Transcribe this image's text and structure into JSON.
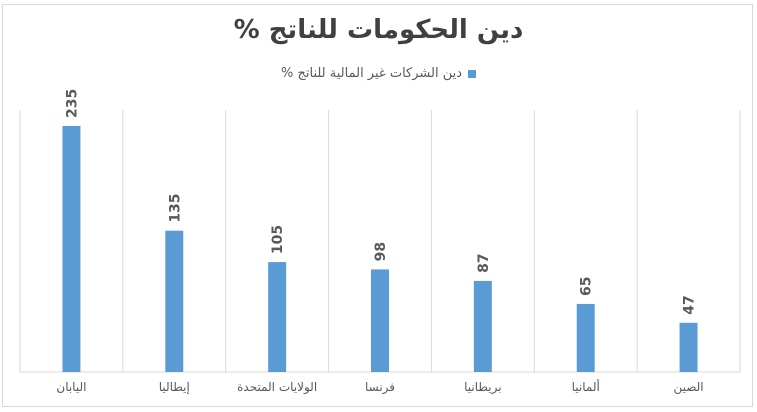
{
  "chart_data": {
    "type": "bar",
    "title": "دين الحكومات للناتج %",
    "series": [
      {
        "name": "دين الشركات غير المالية للناتج %",
        "values": [
          235,
          135,
          105,
          98,
          87,
          65,
          47
        ]
      }
    ],
    "categories": [
      "اليابان",
      "إيطاليا",
      "الولايات المتحدة",
      "فرنسا",
      "بريطانيا",
      "ألمانيا",
      "الصين"
    ],
    "ylim": [
      0,
      235
    ],
    "grid": "vertical category separators",
    "legend_position": "top",
    "colors": {
      "bar": "#5b9bd5",
      "grid": "#d9d9d9",
      "text": "#595959"
    }
  }
}
